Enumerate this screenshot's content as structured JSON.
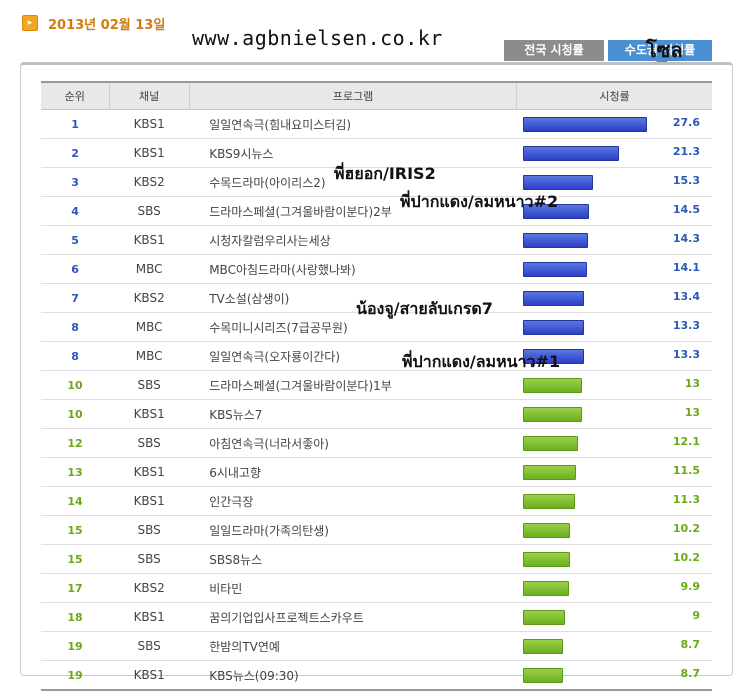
{
  "header": {
    "date": "2013년 02월 13일",
    "url_overlay": "www.agbnielsen.co.kr",
    "seoul_overlay": "โซล"
  },
  "tabs": [
    {
      "label": "전국 시청률"
    },
    {
      "label": "수도권 시청률"
    }
  ],
  "table": {
    "headers": {
      "rank": "순위",
      "channel": "채널",
      "program": "프로그램",
      "rating": "시청률"
    },
    "rows": [
      {
        "rank": "1",
        "channel": "KBS1",
        "program": "일일연속극(힘내요미스터김)",
        "rating": "27.6",
        "value": 27.6,
        "color": "blue"
      },
      {
        "rank": "2",
        "channel": "KBS1",
        "program": "KBS9시뉴스",
        "rating": "21.3",
        "value": 21.3,
        "color": "blue"
      },
      {
        "rank": "3",
        "channel": "KBS2",
        "program": "수목드라마(아이리스2)",
        "rating": "15.3",
        "value": 15.3,
        "color": "blue"
      },
      {
        "rank": "4",
        "channel": "SBS",
        "program": "드라마스페셜(그겨울바람이분다)2부",
        "rating": "14.5",
        "value": 14.5,
        "color": "blue"
      },
      {
        "rank": "5",
        "channel": "KBS1",
        "program": "시청자칼럼우리사는세상",
        "rating": "14.3",
        "value": 14.3,
        "color": "blue"
      },
      {
        "rank": "6",
        "channel": "MBC",
        "program": "MBC아침드라마(사랑했나봐)",
        "rating": "14.1",
        "value": 14.1,
        "color": "blue"
      },
      {
        "rank": "7",
        "channel": "KBS2",
        "program": "TV소설(삼생이)",
        "rating": "13.4",
        "value": 13.4,
        "color": "blue"
      },
      {
        "rank": "8",
        "channel": "MBC",
        "program": "수목미니시리즈(7급공무원)",
        "rating": "13.3",
        "value": 13.3,
        "color": "blue"
      },
      {
        "rank": "8",
        "channel": "MBC",
        "program": "일일연속극(오자룡이간다)",
        "rating": "13.3",
        "value": 13.3,
        "color": "blue"
      },
      {
        "rank": "10",
        "channel": "SBS",
        "program": "드라마스페셜(그겨울바람이분다)1부",
        "rating": "13",
        "value": 13,
        "color": "green"
      },
      {
        "rank": "10",
        "channel": "KBS1",
        "program": "KBS뉴스7",
        "rating": "13",
        "value": 13,
        "color": "green"
      },
      {
        "rank": "12",
        "channel": "SBS",
        "program": "아침연속극(너라서좋아)",
        "rating": "12.1",
        "value": 12.1,
        "color": "green"
      },
      {
        "rank": "13",
        "channel": "KBS1",
        "program": "6시내고향",
        "rating": "11.5",
        "value": 11.5,
        "color": "green"
      },
      {
        "rank": "14",
        "channel": "KBS1",
        "program": "인간극장",
        "rating": "11.3",
        "value": 11.3,
        "color": "green"
      },
      {
        "rank": "15",
        "channel": "SBS",
        "program": "일일드라마(가족의탄생)",
        "rating": "10.2",
        "value": 10.2,
        "color": "green"
      },
      {
        "rank": "15",
        "channel": "SBS",
        "program": "SBS8뉴스",
        "rating": "10.2",
        "value": 10.2,
        "color": "green"
      },
      {
        "rank": "17",
        "channel": "KBS2",
        "program": "비타민",
        "rating": "9.9",
        "value": 9.9,
        "color": "green"
      },
      {
        "rank": "18",
        "channel": "KBS1",
        "program": "꿈의기업입사프로젝트스카우트",
        "rating": "9",
        "value": 9,
        "color": "green"
      },
      {
        "rank": "19",
        "channel": "SBS",
        "program": "한밤의TV연예",
        "rating": "8.7",
        "value": 8.7,
        "color": "green"
      },
      {
        "rank": "19",
        "channel": "KBS1",
        "program": "KBS뉴스(09:30)",
        "rating": "8.7",
        "value": 8.7,
        "color": "green"
      }
    ]
  },
  "annotations": [
    "พี่ฮยอก/IRIS2",
    "พี่ปากแดง/ลมหนาว#2",
    "น้องจู/สายลับเกรด7",
    "พี่ปากแดง/ลมหนาว#1"
  ],
  "colors": {
    "blue": "#2c3fc8",
    "green": "#6ab020",
    "date": "#d07a10"
  }
}
